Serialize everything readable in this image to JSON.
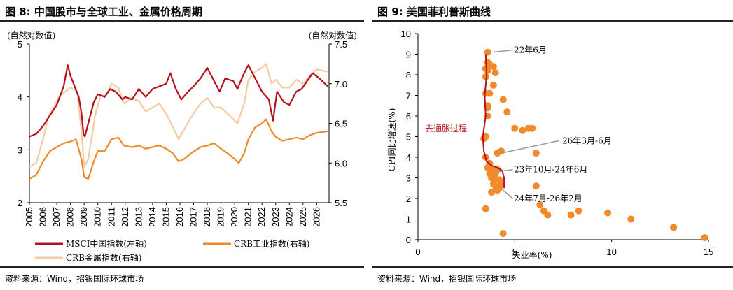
{
  "figures": {
    "left": {
      "title": "图 8: 中国股市与全球工业、金属价格周期",
      "source": "资料来源：Wind，招银国际环球市场"
    },
    "right": {
      "title": "图 9: 美国菲利普斯曲线",
      "source": "资料来源：Wind，招银国际环球市场"
    }
  },
  "colors": {
    "msci": "#b5121b",
    "crb_ind": "#f08a2a",
    "crb_metal": "#f7c9a3",
    "scatter": "#f08a2a",
    "curve": "#b5121b",
    "gray": "#9a9a9a"
  },
  "chart_data": [
    {
      "type": "line",
      "left_axis_label": "(自然对数值)",
      "right_axis_label": "(自然对数值)",
      "x_ticks": [
        "2005",
        "2006",
        "2007",
        "2008",
        "2009",
        "2010",
        "2011",
        "2012",
        "2013",
        "2014",
        "2015",
        "2016",
        "2017",
        "2018",
        "2019",
        "2020",
        "2021",
        "2022",
        "2023",
        "2024",
        "2025",
        "2026"
      ],
      "xlim": [
        2005,
        2026.9
      ],
      "ylim_left": [
        2,
        5
      ],
      "yticks_left": [
        "2",
        "3",
        "4",
        "5"
      ],
      "ylim_right": [
        5.5,
        7.5
      ],
      "yticks_right": [
        "5.5",
        "6.0",
        "6.5",
        "7.0",
        "7.5"
      ],
      "legend": [
        "MSCI中国指数(左轴)",
        "CRB工业指数(右轴)",
        "CRB金属指数(右轴)"
      ],
      "series": [
        {
          "name": "MSCI中国指数(左轴)",
          "axis": "left",
          "points": [
            [
              2005,
              3.25
            ],
            [
              2005.5,
              3.3
            ],
            [
              2006,
              3.45
            ],
            [
              2006.5,
              3.65
            ],
            [
              2007,
              3.85
            ],
            [
              2007.5,
              4.2
            ],
            [
              2007.8,
              4.6
            ],
            [
              2008,
              4.4
            ],
            [
              2008.3,
              4.2
            ],
            [
              2008.6,
              4.0
            ],
            [
              2008.8,
              3.7
            ],
            [
              2008.95,
              3.3
            ],
            [
              2009.05,
              3.25
            ],
            [
              2009.3,
              3.5
            ],
            [
              2009.7,
              3.9
            ],
            [
              2010,
              4.05
            ],
            [
              2010.5,
              4.0
            ],
            [
              2010.9,
              4.15
            ],
            [
              2011.3,
              4.1
            ],
            [
              2011.8,
              3.95
            ],
            [
              2012,
              4.0
            ],
            [
              2012.5,
              3.95
            ],
            [
              2013,
              4.15
            ],
            [
              2013.5,
              4.0
            ],
            [
              2014,
              4.15
            ],
            [
              2014.5,
              4.2
            ],
            [
              2015,
              4.25
            ],
            [
              2015.3,
              4.45
            ],
            [
              2015.7,
              4.15
            ],
            [
              2016.1,
              3.95
            ],
            [
              2016.6,
              4.1
            ],
            [
              2017,
              4.2
            ],
            [
              2017.5,
              4.35
            ],
            [
              2018,
              4.55
            ],
            [
              2018.5,
              4.3
            ],
            [
              2018.9,
              4.1
            ],
            [
              2019.3,
              4.35
            ],
            [
              2019.9,
              4.3
            ],
            [
              2020.2,
              4.15
            ],
            [
              2020.6,
              4.4
            ],
            [
              2021,
              4.6
            ],
            [
              2021.5,
              4.35
            ],
            [
              2022,
              4.1
            ],
            [
              2022.5,
              3.95
            ],
            [
              2022.8,
              3.55
            ],
            [
              2023.1,
              4.1
            ],
            [
              2023.6,
              3.9
            ],
            [
              2024,
              3.85
            ],
            [
              2024.5,
              4.1
            ],
            [
              2024.9,
              4.15
            ],
            [
              2025.3,
              4.3
            ],
            [
              2025.7,
              4.45
            ],
            [
              2026.2,
              4.35
            ],
            [
              2026.8,
              4.2
            ]
          ]
        },
        {
          "name": "CRB工业指数(右轴)",
          "axis": "right",
          "points": [
            [
              2005,
              5.8
            ],
            [
              2005.5,
              5.85
            ],
            [
              2006,
              6.02
            ],
            [
              2006.5,
              6.15
            ],
            [
              2007,
              6.2
            ],
            [
              2007.5,
              6.25
            ],
            [
              2008,
              6.27
            ],
            [
              2008.4,
              6.3
            ],
            [
              2008.8,
              6.05
            ],
            [
              2009,
              5.82
            ],
            [
              2009.3,
              5.8
            ],
            [
              2009.7,
              6.02
            ],
            [
              2010,
              6.15
            ],
            [
              2010.5,
              6.15
            ],
            [
              2011,
              6.3
            ],
            [
              2011.5,
              6.32
            ],
            [
              2011.9,
              6.22
            ],
            [
              2012.5,
              6.2
            ],
            [
              2013,
              6.22
            ],
            [
              2013.5,
              6.18
            ],
            [
              2014,
              6.2
            ],
            [
              2014.5,
              6.22
            ],
            [
              2015,
              6.18
            ],
            [
              2015.5,
              6.12
            ],
            [
              2015.9,
              6.02
            ],
            [
              2016.3,
              6.05
            ],
            [
              2016.8,
              6.12
            ],
            [
              2017.5,
              6.2
            ],
            [
              2018,
              6.22
            ],
            [
              2018.5,
              6.25
            ],
            [
              2019,
              6.18
            ],
            [
              2019.5,
              6.12
            ],
            [
              2020,
              6.05
            ],
            [
              2020.3,
              6.0
            ],
            [
              2020.7,
              6.12
            ],
            [
              2021,
              6.3
            ],
            [
              2021.5,
              6.45
            ],
            [
              2022,
              6.5
            ],
            [
              2022.3,
              6.55
            ],
            [
              2022.7,
              6.4
            ],
            [
              2023,
              6.33
            ],
            [
              2023.5,
              6.28
            ],
            [
              2024,
              6.3
            ],
            [
              2024.5,
              6.32
            ],
            [
              2025,
              6.3
            ],
            [
              2025.5,
              6.35
            ],
            [
              2026,
              6.38
            ],
            [
              2026.8,
              6.4
            ]
          ]
        },
        {
          "name": "CRB金属指数(右轴)",
          "axis": "right",
          "points": [
            [
              2005,
              5.95
            ],
            [
              2005.5,
              6.0
            ],
            [
              2006,
              6.3
            ],
            [
              2006.4,
              6.6
            ],
            [
              2006.8,
              6.7
            ],
            [
              2007.2,
              6.85
            ],
            [
              2007.6,
              6.9
            ],
            [
              2008,
              6.95
            ],
            [
              2008.5,
              6.9
            ],
            [
              2008.8,
              6.4
            ],
            [
              2009,
              5.95
            ],
            [
              2009.3,
              6.05
            ],
            [
              2009.8,
              6.6
            ],
            [
              2010.2,
              6.85
            ],
            [
              2010.6,
              6.85
            ],
            [
              2011,
              7.0
            ],
            [
              2011.5,
              6.95
            ],
            [
              2011.9,
              6.75
            ],
            [
              2012.5,
              6.82
            ],
            [
              2013,
              6.78
            ],
            [
              2013.5,
              6.65
            ],
            [
              2014,
              6.7
            ],
            [
              2014.5,
              6.75
            ],
            [
              2015,
              6.62
            ],
            [
              2015.5,
              6.45
            ],
            [
              2015.9,
              6.3
            ],
            [
              2016.4,
              6.45
            ],
            [
              2016.9,
              6.6
            ],
            [
              2017.5,
              6.75
            ],
            [
              2018,
              6.82
            ],
            [
              2018.5,
              6.7
            ],
            [
              2019,
              6.7
            ],
            [
              2019.5,
              6.62
            ],
            [
              2020.2,
              6.5
            ],
            [
              2020.7,
              6.75
            ],
            [
              2021,
              7.05
            ],
            [
              2021.5,
              7.15
            ],
            [
              2022,
              7.2
            ],
            [
              2022.3,
              7.25
            ],
            [
              2022.7,
              7.0
            ],
            [
              2023,
              7.05
            ],
            [
              2023.5,
              6.95
            ],
            [
              2024,
              6.95
            ],
            [
              2024.5,
              7.05
            ],
            [
              2025,
              7.0
            ],
            [
              2025.5,
              7.1
            ],
            [
              2026,
              7.18
            ],
            [
              2026.8,
              7.15
            ]
          ]
        }
      ]
    },
    {
      "type": "scatter",
      "ylabel": "CPI同比增速(%)",
      "xlabel": "失业率(%)",
      "xlim": [
        0,
        15
      ],
      "xticks": [
        "0",
        "5",
        "10",
        "15"
      ],
      "ylim": [
        0,
        10
      ],
      "yticks": [
        "0",
        "1",
        "2",
        "3",
        "4",
        "5",
        "6",
        "7",
        "8",
        "9",
        "10"
      ],
      "curve_label": "去通胀过程",
      "annotations": [
        "22年6月",
        "26年3月-6月",
        "23年10月-24年6月",
        "24年7月-26年2月"
      ],
      "points": [
        [
          3.6,
          9.1
        ],
        [
          3.6,
          8.6
        ],
        [
          3.7,
          8.5
        ],
        [
          3.5,
          8.3
        ],
        [
          3.9,
          8.4
        ],
        [
          3.6,
          8.2
        ],
        [
          3.5,
          7.9
        ],
        [
          3.5,
          7.1
        ],
        [
          3.6,
          6.5
        ],
        [
          3.6,
          6.4
        ],
        [
          3.6,
          6.0
        ],
        [
          3.5,
          5.0
        ],
        [
          3.4,
          4.9
        ],
        [
          3.5,
          4.0
        ],
        [
          3.7,
          3.7
        ],
        [
          3.6,
          3.5
        ],
        [
          3.8,
          3.4
        ],
        [
          3.7,
          3.2
        ],
        [
          3.9,
          3.1
        ],
        [
          3.8,
          3.0
        ],
        [
          3.7,
          3.4
        ],
        [
          4.0,
          3.2
        ],
        [
          4.1,
          3.4
        ],
        [
          4.0,
          2.9
        ],
        [
          3.9,
          2.7
        ],
        [
          4.2,
          2.5
        ],
        [
          4.1,
          2.4
        ],
        [
          4.2,
          2.9
        ],
        [
          4.3,
          2.7
        ],
        [
          4.0,
          2.6
        ],
        [
          3.8,
          2.3
        ],
        [
          3.5,
          1.5
        ],
        [
          4.4,
          0.3
        ],
        [
          4.0,
          8.1
        ],
        [
          3.7,
          7.1
        ],
        [
          3.9,
          7.5
        ],
        [
          4.4,
          6.8
        ],
        [
          4.6,
          6.2
        ],
        [
          5.0,
          5.4
        ],
        [
          5.4,
          5.3
        ],
        [
          5.9,
          5.4
        ],
        [
          5.7,
          5.4
        ],
        [
          6.1,
          4.2
        ],
        [
          6.1,
          2.6
        ],
        [
          6.3,
          1.7
        ],
        [
          6.5,
          1.4
        ],
        [
          6.7,
          1.2
        ],
        [
          7.9,
          1.2
        ],
        [
          8.3,
          1.4
        ],
        [
          9.8,
          1.3
        ],
        [
          11.0,
          1.0
        ],
        [
          13.2,
          0.6
        ],
        [
          14.8,
          0.1
        ],
        [
          4.1,
          4.2
        ],
        [
          4.3,
          4.3
        ]
      ],
      "curve": [
        [
          3.5,
          9.0
        ],
        [
          3.55,
          8.0
        ],
        [
          3.45,
          7.0
        ],
        [
          3.5,
          6.0
        ],
        [
          3.35,
          5.0
        ],
        [
          3.4,
          4.3
        ],
        [
          3.55,
          3.8
        ],
        [
          3.8,
          3.6
        ],
        [
          4.1,
          3.5
        ],
        [
          4.35,
          3.35
        ],
        [
          4.45,
          3.0
        ],
        [
          4.45,
          2.5
        ]
      ]
    }
  ]
}
